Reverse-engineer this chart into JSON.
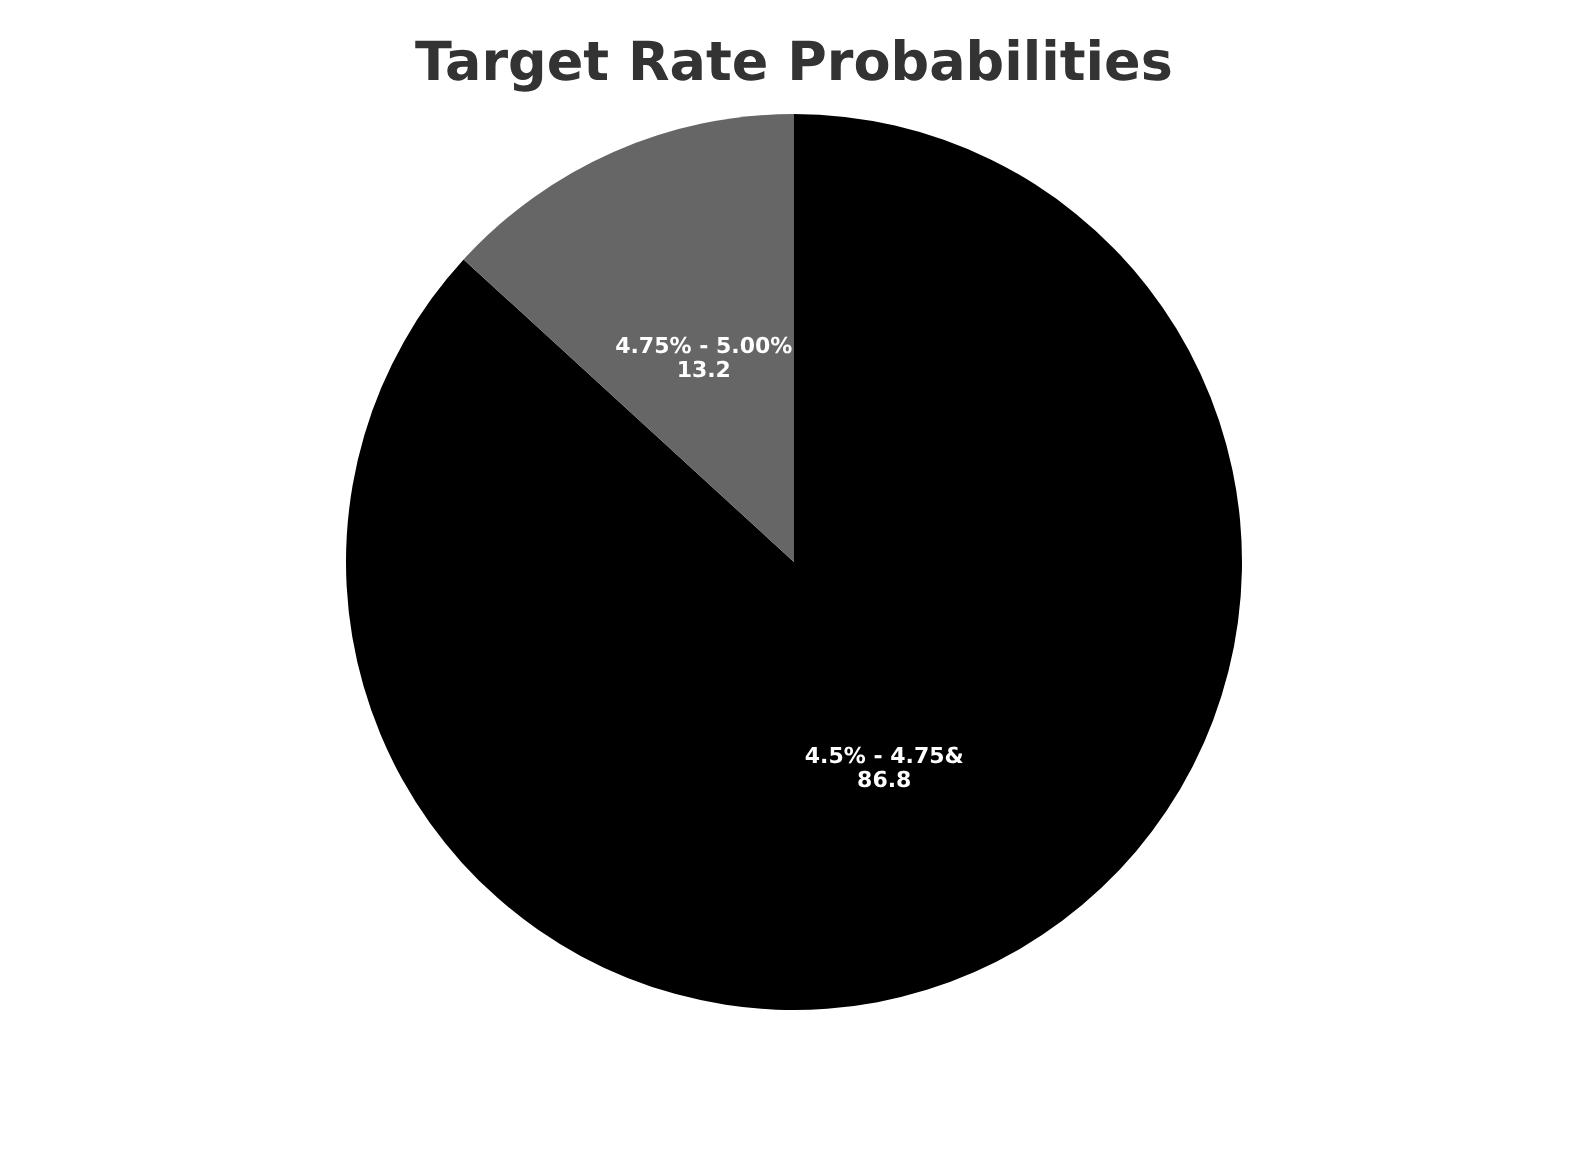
{
  "chart_data": {
    "type": "pie",
    "title": "Target Rate Probabilities",
    "categories": [
      "4.5% - 4.75&",
      "4.75% - 5.00%"
    ],
    "values": [
      86.8,
      13.2
    ],
    "colors": [
      "#000000",
      "#666666"
    ],
    "data_labels": true
  }
}
